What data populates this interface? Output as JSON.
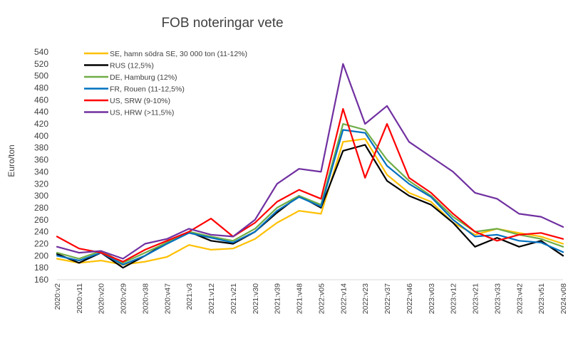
{
  "chart_data": {
    "type": "line",
    "title": "FOB noteringar vete",
    "ylabel": "Euro/ton",
    "xlabel": "",
    "ylim": [
      160,
      540
    ],
    "ytick_step": 20,
    "grid": false,
    "legend_position": "top-left",
    "x": [
      "2020:v2",
      "2020:v11",
      "2020:v20",
      "2020:v29",
      "2020:v38",
      "2020:v47",
      "2021:v3",
      "2021:v12",
      "2021:v21",
      "2021:v30",
      "2021:v39",
      "2021:v48",
      "2022:v05",
      "2022:v14",
      "2022:v23",
      "2022:v37",
      "2022:v46",
      "2023:v03",
      "2023:v12",
      "2023:v21",
      "2023:v33",
      "2023:v42",
      "2023:v51",
      "2024:v08"
    ],
    "series": [
      {
        "name": "SE, hamn södra SE, 30 000 ton (11-12%)",
        "color": "#FFC000",
        "values": [
          195,
          188,
          192,
          185,
          190,
          198,
          218,
          210,
          212,
          228,
          255,
          275,
          270,
          390,
          395,
          335,
          305,
          290,
          255,
          235,
          245,
          238,
          232,
          220
        ]
      },
      {
        "name": "RUS (12,5%)",
        "color": "#000000",
        "values": [
          203,
          188,
          205,
          180,
          200,
          222,
          240,
          225,
          220,
          240,
          272,
          300,
          280,
          375,
          385,
          325,
          300,
          285,
          255,
          215,
          230,
          215,
          225,
          200
        ]
      },
      {
        "name": "DE, Hamburg (12%)",
        "color": "#70AD47",
        "values": [
          205,
          195,
          208,
          188,
          205,
          222,
          240,
          232,
          225,
          245,
          280,
          300,
          285,
          420,
          410,
          360,
          325,
          300,
          265,
          240,
          245,
          235,
          228,
          215
        ]
      },
      {
        "name": "FR, Rouen (11-12,5%)",
        "color": "#0070C0",
        "values": [
          200,
          192,
          205,
          185,
          200,
          220,
          238,
          230,
          222,
          240,
          275,
          298,
          282,
          410,
          405,
          350,
          320,
          298,
          260,
          232,
          235,
          225,
          222,
          206
        ]
      },
      {
        "name": "US, SRW (9-10%)",
        "color": "#FF0000",
        "values": [
          232,
          212,
          205,
          190,
          210,
          225,
          240,
          262,
          232,
          255,
          290,
          310,
          295,
          445,
          330,
          420,
          330,
          305,
          270,
          240,
          225,
          235,
          238,
          228
        ]
      },
      {
        "name": "US, HRW (>11,5%)",
        "color": "#7030A0",
        "values": [
          215,
          205,
          208,
          195,
          220,
          228,
          245,
          235,
          232,
          260,
          320,
          345,
          340,
          520,
          420,
          450,
          390,
          365,
          340,
          305,
          295,
          270,
          265,
          248
        ]
      }
    ]
  }
}
